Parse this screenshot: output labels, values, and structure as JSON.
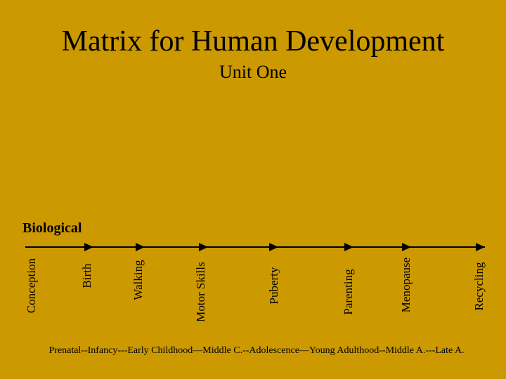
{
  "slide": {
    "title": "Matrix for Human Development",
    "subtitle": "Unit One",
    "section_label": "Biological",
    "milestones": [
      "Conception",
      "Birth",
      "Walking",
      "Motor Skills",
      "Puberty",
      "Parenting",
      "Menopause",
      "Recycling"
    ],
    "stages_text": "Prenatal--Infancy---Early Childhood—Middle C.--Adolescence—Young Adulthood--Middle A.---Late A."
  },
  "colors": {
    "background": "#CC9900",
    "text": "#000000"
  }
}
